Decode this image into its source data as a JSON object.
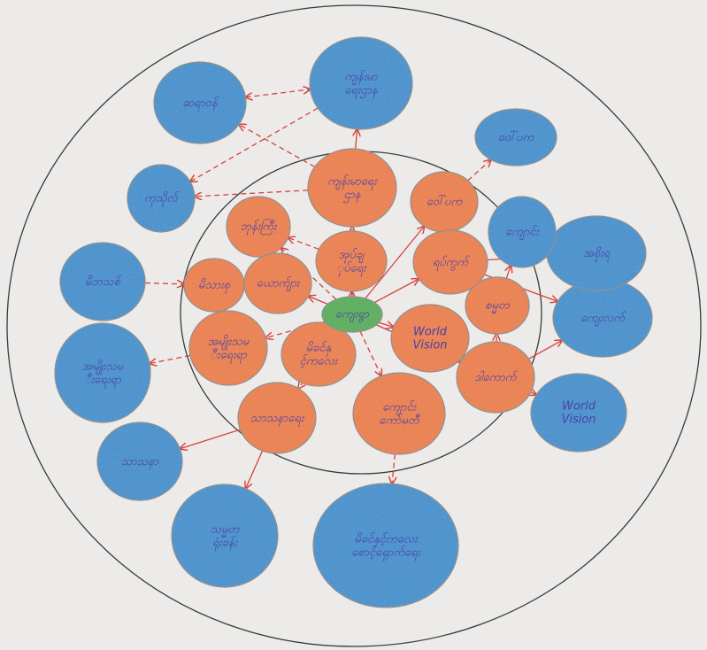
{
  "colors": {
    "paper": "#ecebea",
    "ring_stroke": "#3a3a3a",
    "blue_bubble": "#2f8fd0",
    "blue_stroke": "#8a8a8a",
    "orange_bubble": "#f07b3a",
    "orange_stroke": "#8a8a8a",
    "green_bubble": "#4caf50",
    "arrow": "#d8413a",
    "label": "#4a3fa8"
  },
  "center": {
    "label": "ကျေးရွာ"
  },
  "inner_nodes": [
    {
      "id": "n1",
      "label": "ကျန်းမာရေး ဌာန"
    },
    {
      "id": "n2",
      "label": "ဘုန်းကြီး"
    },
    {
      "id": "n3",
      "label": "အုပ်ချုပ်ရေး"
    },
    {
      "id": "n4",
      "label": "ဝေါ်ပက"
    },
    {
      "id": "n5",
      "label": "ရပ်ကွက်"
    },
    {
      "id": "n6",
      "label": "မိသားစု"
    },
    {
      "id": "n7",
      "label": "ယောက်ျား"
    },
    {
      "id": "n8",
      "label": "စမ္မတ"
    },
    {
      "id": "n9",
      "label": "အမျိုးသမီးရေးရာ"
    },
    {
      "id": "n10",
      "label": "မိခင်နှင့်ကလေး"
    },
    {
      "id": "n11",
      "label": "World Vision"
    },
    {
      "id": "n12",
      "label": "ကျောင်းကော်မတီ"
    },
    {
      "id": "n13",
      "label": "ဒါကောက်"
    },
    {
      "id": "n14",
      "label": "သာသနာရေး"
    }
  ],
  "outer_nodes": [
    {
      "id": "o1",
      "label": "ဆရာဝန်"
    },
    {
      "id": "o2",
      "label": "ကျန်းမာရေးဌာန"
    },
    {
      "id": "o3",
      "label": "ကုသိုလ်"
    },
    {
      "id": "o4",
      "label": "မိဘသစ်"
    },
    {
      "id": "o5",
      "label": "အမျိုးသမီးရေးရာ"
    },
    {
      "id": "o6",
      "label": "သာသနာ"
    },
    {
      "id": "o7",
      "label": "သမ္မတ ရုံးခန်း"
    },
    {
      "id": "o8",
      "label": "မိခင်နှင့်ကလေး စောင့်ရှောက်ရေး"
    },
    {
      "id": "o9",
      "label": "World Vision"
    },
    {
      "id": "o10",
      "label": "ကျေးလက်"
    },
    {
      "id": "o11",
      "label": "အစိုးရ"
    },
    {
      "id": "o12",
      "label": "ဝေါ်ပက"
    },
    {
      "id": "o13",
      "label": "ကျောင်း"
    }
  ]
}
